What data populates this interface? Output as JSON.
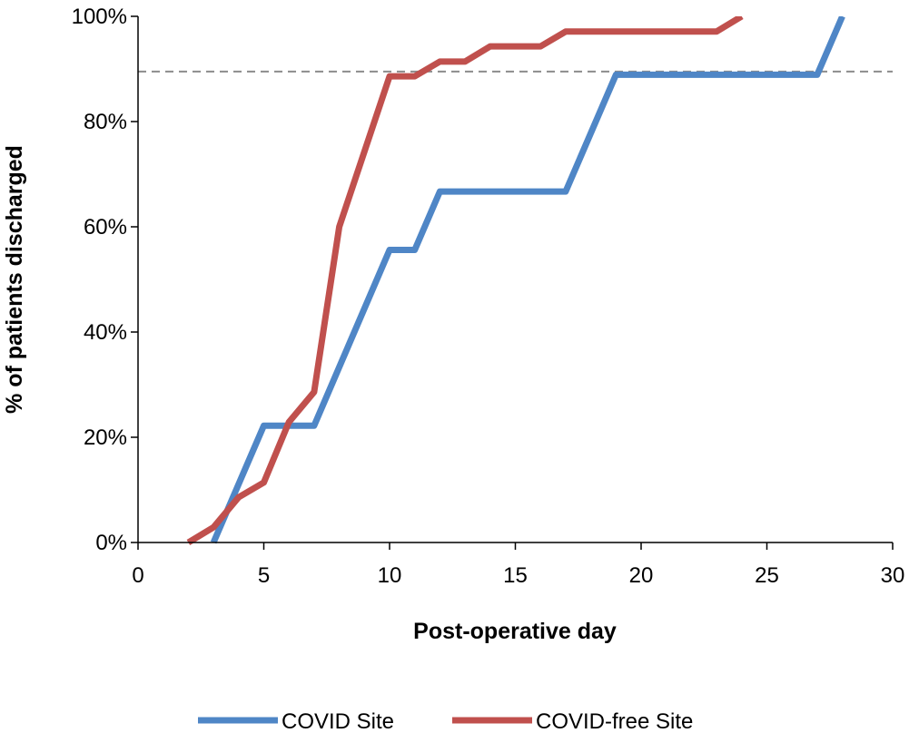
{
  "chart_data": {
    "type": "line",
    "title": "",
    "xlabel": "Post-operative day",
    "ylabel": "% of patients discharged",
    "xlim": [
      0,
      30
    ],
    "ylim": [
      0,
      100
    ],
    "x_ticks": [
      0,
      5,
      10,
      15,
      20,
      25,
      30
    ],
    "y_ticks": [
      0,
      20,
      40,
      60,
      80,
      100
    ],
    "x_tick_labels": [
      "0",
      "5",
      "10",
      "15",
      "20",
      "25",
      "30"
    ],
    "y_tick_labels": [
      "0%",
      "20%",
      "40%",
      "60%",
      "80%",
      "100%"
    ],
    "grid": false,
    "legend_position": "bottom",
    "reference_line": {
      "y": 89.5,
      "style": "dashed",
      "color": "#8c8c8c"
    },
    "series": [
      {
        "name": "COVID Site",
        "color": "#4f86c6",
        "x": [
          3,
          5,
          7,
          10,
          11,
          12,
          17,
          19,
          27,
          28
        ],
        "y": [
          0,
          22.2,
          22.2,
          55.6,
          55.6,
          66.7,
          66.7,
          88.9,
          88.9,
          100
        ]
      },
      {
        "name": "COVID-free Site",
        "color": "#c0504d",
        "x": [
          2,
          3,
          4,
          5,
          6,
          7,
          8,
          10,
          11,
          12,
          13,
          14,
          16,
          17,
          23,
          24
        ],
        "y": [
          0,
          2.9,
          8.6,
          11.4,
          22.9,
          28.6,
          60,
          88.6,
          88.6,
          91.4,
          91.4,
          94.3,
          94.3,
          97.1,
          97.1,
          100
        ]
      }
    ]
  }
}
